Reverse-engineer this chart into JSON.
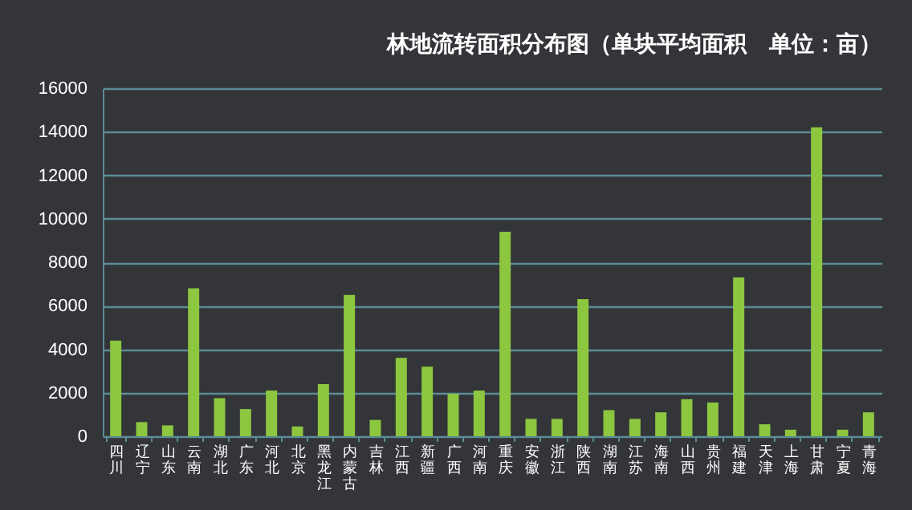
{
  "chart_data": {
    "type": "bar",
    "title": "林地流转面积分布图（单块平均面积　单位：亩）",
    "categories": [
      "四川",
      "辽宁",
      "山东",
      "云南",
      "湖北",
      "广东",
      "河北",
      "北京",
      "黑龙江",
      "内蒙古",
      "吉林",
      "江西",
      "新疆",
      "广西",
      "河南",
      "重庆",
      "安徽",
      "浙江",
      "陕西",
      "湖南",
      "江苏",
      "海南",
      "山西",
      "贵州",
      "福建",
      "天津",
      "上海",
      "甘肃",
      "宁夏",
      "青海"
    ],
    "values": [
      4400,
      650,
      500,
      6800,
      1750,
      1250,
      2100,
      450,
      2400,
      6500,
      750,
      3600,
      3200,
      1950,
      2100,
      9400,
      800,
      800,
      6300,
      1200,
      800,
      1100,
      1700,
      1550,
      7300,
      550,
      300,
      14200,
      300,
      1100
    ],
    "color": "#8dc63f",
    "ylim": [
      0,
      16000
    ],
    "yticks": [
      0,
      2000,
      4000,
      6000,
      8000,
      10000,
      12000,
      14000,
      16000
    ],
    "grid": "y"
  }
}
